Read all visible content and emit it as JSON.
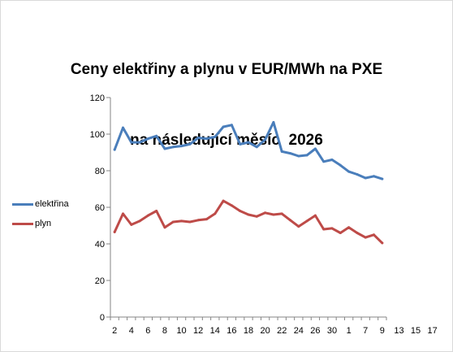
{
  "chart_data": {
    "type": "line",
    "title_line1": "Ceny elektřiny a plynu v EUR/MWh na PXE",
    "title_line2": "na následující měsíc  2026",
    "xlabel": "",
    "ylabel": "",
    "ylim": [
      0,
      120
    ],
    "yticks": [
      0,
      20,
      40,
      60,
      80,
      100,
      120
    ],
    "x_tick_labels": [
      "2",
      "4",
      "6",
      "8",
      "10",
      "12",
      "14",
      "16",
      "18",
      "20",
      "22",
      "24",
      "26",
      "30",
      "1",
      "7",
      "9",
      "13",
      "15",
      "17"
    ],
    "grid": false,
    "legend_position": "left",
    "series": [
      {
        "name": "elektřina",
        "color": "#4a7ebb",
        "values": [
          91.5,
          103.5,
          95.5,
          95.5,
          97.5,
          99,
          92,
          93,
          93.5,
          94.5,
          98,
          97.5,
          98.5,
          104,
          105,
          94.5,
          95.5,
          93,
          97,
          106.5,
          90.5,
          89.5,
          88,
          88.5,
          92,
          85,
          86,
          83,
          79.5,
          78,
          76,
          77,
          75.5
        ]
      },
      {
        "name": "plyn",
        "color": "#be4b48",
        "values": [
          46.5,
          56.5,
          50.5,
          52.5,
          55.5,
          58,
          49,
          52,
          52.5,
          52,
          53,
          53.5,
          56.5,
          63.5,
          61,
          58,
          56,
          55,
          57,
          56,
          56.5,
          53,
          49.5,
          52.5,
          55.5,
          48,
          48.5,
          46,
          49,
          46,
          43.5,
          45,
          40.5
        ]
      }
    ]
  }
}
